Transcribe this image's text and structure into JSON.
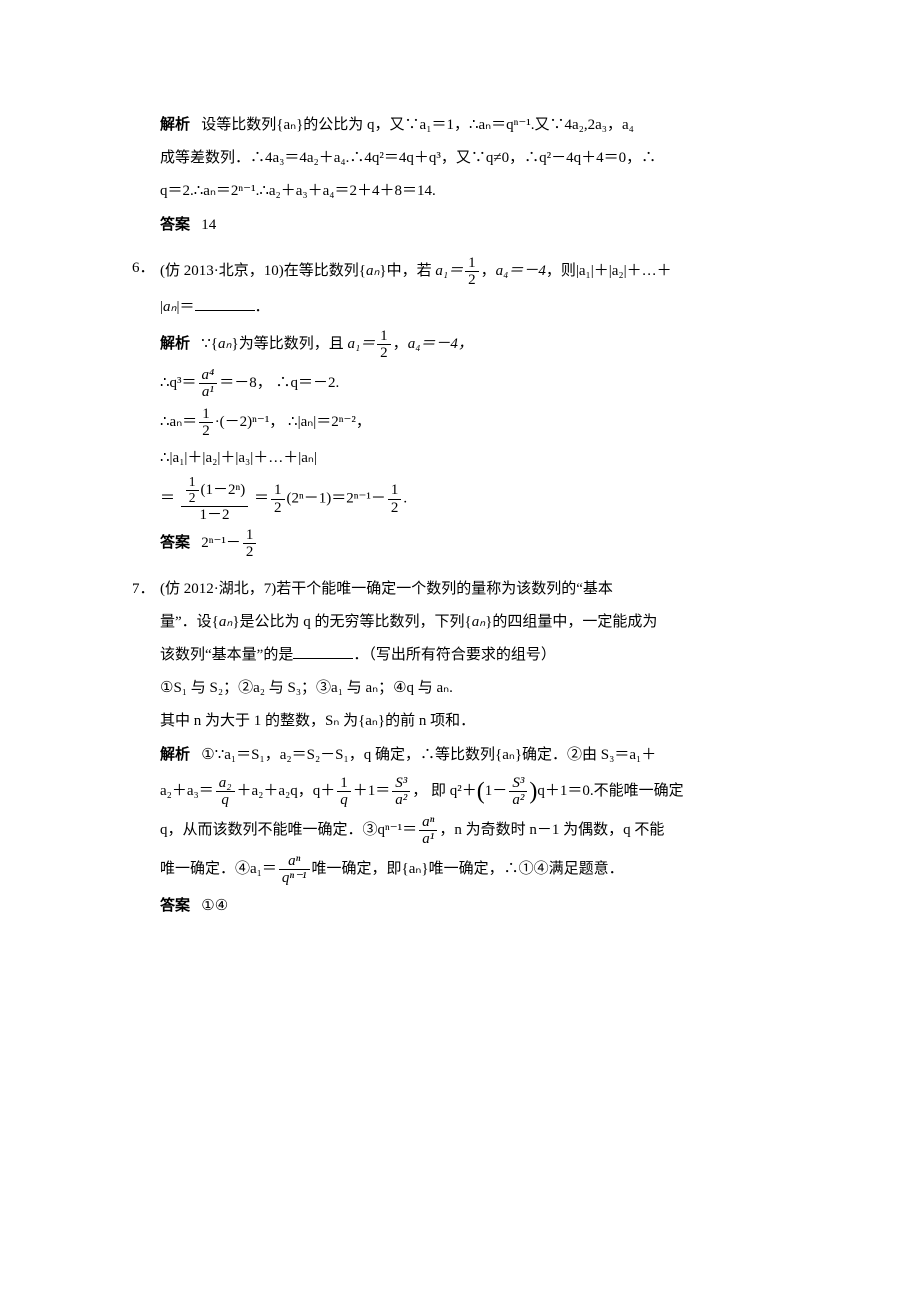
{
  "p5": {
    "sol_label": "解析",
    "sol_line1": "设等比数列{aₙ}的公比为 q，又∵a₁＝1，∴aₙ＝qⁿ⁻¹.又∵4a₂,2a₃，a₄",
    "sol_line2": "成等差数列．∴4a₃＝4a₂＋a₄.∴4q²＝4q＋q³，又∵q≠0，∴q²－4q＋4＝0，∴",
    "sol_line3": "q＝2.∴aₙ＝2ⁿ⁻¹.∴a₂＋a₃＋a₄＝2＋4＋8＝14.",
    "ans_label": "答案",
    "ans_value": "14"
  },
  "p6": {
    "number": "6．",
    "stem_prefix": "(仿 2013·北京，10)在等比数列{",
    "an": "aₙ",
    "stem_mid1": "}中，若 ",
    "a1_label": "a₁＝",
    "stem_mid2": "，",
    "a4_text": "a₄＝－4",
    "stem_mid3": "，则|a₁|＋|a₂|＋…＋",
    "stem_line2_pre": "|",
    "stem_line2_post": "|＝",
    "sol_label": "解析",
    "sol_l1_pre": "∵{",
    "sol_l1_post": "}为等比数列，且 ",
    "sol_l1_a1": "a₁＝",
    "sol_l1_comma": "，",
    "sol_l1_a4": "a₄＝－4，",
    "sol_l2_pre": "∴q³＝",
    "sol_l2_eq": "＝－8，  ∴q＝－2.",
    "sol_l3_pre": "∴aₙ＝",
    "sol_l3_mid": "·(－2)ⁿ⁻¹，  ∴|aₙ|＝2ⁿ⁻²，",
    "sol_l4": "∴|a₁|＋|a₂|＋|a₃|＋…＋|aₙ|",
    "sol_l5_eq1": "＝",
    "sol_l5_eq2": "＝",
    "sol_l5_mid": "(2ⁿ－1)＝2ⁿ⁻¹－",
    "sol_l5_end": ".",
    "ans_label": "答案",
    "ans_pre": "2ⁿ⁻¹－",
    "frac_half_n": "1",
    "frac_half_d": "2",
    "frac_a4a1_n": "a⁴",
    "frac_a4a1_d": "a¹",
    "frac_big_n_top": "1",
    "frac_big_n_bot": "2",
    "frac_big_n_paren": "(1－2ⁿ)",
    "frac_big_d": "1－2"
  },
  "p7": {
    "number": "7．",
    "stem_l1": "(仿 2012·湖北，7)若干个能唯一确定一个数列的量称为该数列的“基本",
    "stem_l2_pre": "量”．设{",
    "stem_l2_post": "}是公比为 q 的无穷等比数列，下列{",
    "stem_l2_post2": "}的四组量中，一定能成为",
    "stem_l3_pre": "该数列“基本量”的是",
    "stem_l3_post": "．（写出所有符合要求的组号）",
    "options": "①S₁ 与 S₂；②a₂ 与 S₃；③a₁ 与 aₙ；④q 与 aₙ.",
    "note": "其中 n 为大于 1 的整数，Sₙ 为{aₙ}的前 n 项和．",
    "sol_label": "解析",
    "sol_l1": "①∵a₁＝S₁，a₂＝S₂－S₁，q 确定，∴等比数列{aₙ}确定．②由 S₃＝a₁＋",
    "sol_l2_pre": "a₂＋a₃＝",
    "sol_l2_mid1": "＋a₂＋a₂q，q＋",
    "sol_l2_mid2": "＋1＝",
    "sol_l2_mid3": "， 即 q²＋",
    "sol_l2_mid4": "q＋1＝0.不能唯一确定",
    "sol_l2_frac1_n": "a₂",
    "sol_l2_frac1_d": "q",
    "sol_l2_frac2_n": "1",
    "sol_l2_frac2_d": "q",
    "sol_l2_frac3_n": "S³",
    "sol_l2_frac3_d": "a²",
    "sol_l2_paren_pre": "1－",
    "sol_l2_paren_frac_n": "S³",
    "sol_l2_paren_frac_d": "a²",
    "sol_l3_pre": "q，从而该数列不能唯一确定．③qⁿ⁻¹＝",
    "sol_l3_frac_n": "aⁿ",
    "sol_l3_frac_d": "a¹",
    "sol_l3_post": "，n 为奇数时 n－1 为偶数，q 不能",
    "sol_l4_pre": "唯一确定．④a₁＝",
    "sol_l4_frac_n": "aⁿ",
    "sol_l4_frac_d": "qⁿ⁻¹",
    "sol_l4_post": "唯一确定，即{aₙ}唯一确定，∴①④满足题意．",
    "ans_label": "答案",
    "ans_value": "①④"
  }
}
